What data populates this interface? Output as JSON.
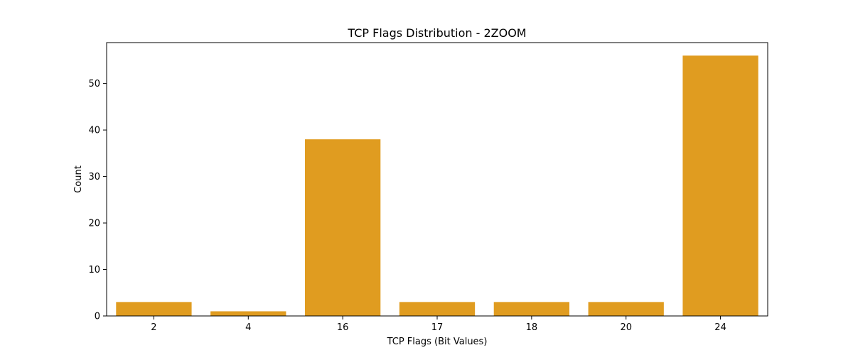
{
  "chart_data": {
    "type": "bar",
    "title": "TCP Flags Distribution - 2ZOOM",
    "xlabel": "TCP Flags (Bit Values)",
    "ylabel": "Count",
    "categories": [
      "2",
      "4",
      "16",
      "17",
      "18",
      "20",
      "24"
    ],
    "values": [
      3,
      1,
      38,
      3,
      3,
      3,
      56
    ],
    "ylim": [
      0,
      58.8
    ],
    "yticks": [
      0,
      10,
      20,
      30,
      40,
      50
    ],
    "bar_color": "#e09c20",
    "grid": false,
    "legend": "none"
  }
}
